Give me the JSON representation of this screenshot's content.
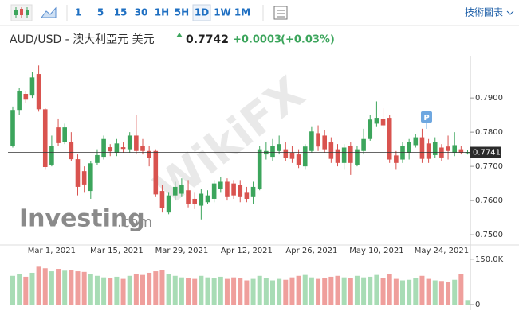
{
  "toolbar": {
    "intervals": [
      "1",
      "5",
      "15",
      "30",
      "1H",
      "5H",
      "1D",
      "1W",
      "1M"
    ],
    "selected": "1D",
    "menu": "技術圖表"
  },
  "header": {
    "symbol": "AUD/USD - 澳大利亞元 美元",
    "price": "0.7742",
    "change": "+0.0003",
    "change_pct": "(+0.03%)"
  },
  "watermarks": {
    "wikifx": "WikiFX",
    "investing": "Investing",
    "investing_suffix": ".com"
  },
  "marker": "P",
  "chart_data": {
    "type": "candlestick",
    "categories": [
      null,
      null,
      null,
      null,
      null,
      null,
      "Mar 1, 2021",
      null,
      null,
      null,
      null,
      null,
      null,
      null,
      null,
      null,
      "Mar 15, 2021",
      null,
      null,
      null,
      null,
      null,
      null,
      null,
      null,
      null,
      "Mar 29, 2021",
      null,
      null,
      null,
      null,
      null,
      null,
      null,
      null,
      null,
      "Apr 12, 2021",
      null,
      null,
      null,
      null,
      null,
      null,
      null,
      null,
      null,
      "Apr 26, 2021",
      null,
      null,
      null,
      null,
      null,
      null,
      null,
      null,
      null,
      "May 10, 2021",
      null,
      null,
      null,
      null,
      null,
      null,
      null,
      null,
      null,
      "May 24, 2021",
      null,
      null,
      null,
      null
    ],
    "open": [
      0.776,
      0.7865,
      0.7912,
      0.7907,
      0.797,
      0.7867,
      0.7705,
      0.7814,
      0.7772,
      0.7772,
      0.7721,
      0.7686,
      0.7628,
      0.771,
      0.7728,
      0.7756,
      0.774,
      0.7756,
      0.775,
      0.779,
      0.776,
      0.7745,
      0.7745,
      0.7628,
      0.7565,
      0.7615,
      0.762,
      0.763,
      0.7605,
      0.7585,
      0.7595,
      0.7605,
      0.7635,
      0.7655,
      0.765,
      0.7645,
      0.7625,
      0.761,
      0.7635,
      0.7735,
      0.7728,
      0.7745,
      0.775,
      0.774,
      0.7735,
      0.77,
      0.7745,
      0.7797,
      0.779,
      0.777,
      0.775,
      0.771,
      0.776,
      0.7705,
      0.7745,
      0.778,
      0.7825,
      0.7838,
      0.7842,
      0.7732,
      0.772,
      0.774,
      0.7762,
      0.7785,
      0.7767,
      0.7733,
      0.7755,
      0.7758,
      0.774,
      0.775,
      0.7739
    ],
    "high": [
      0.7875,
      0.793,
      0.792,
      0.7975,
      0.7995,
      0.787,
      0.779,
      0.784,
      0.7825,
      0.78,
      0.7735,
      0.77,
      0.7715,
      0.775,
      0.779,
      0.7765,
      0.778,
      0.777,
      0.78,
      0.785,
      0.778,
      0.776,
      0.775,
      0.7645,
      0.7625,
      0.7655,
      0.7665,
      0.766,
      0.7625,
      0.7635,
      0.763,
      0.766,
      0.767,
      0.7665,
      0.766,
      0.766,
      0.764,
      0.7655,
      0.776,
      0.777,
      0.778,
      0.779,
      0.777,
      0.776,
      0.775,
      0.7765,
      0.7815,
      0.782,
      0.7805,
      0.7785,
      0.7765,
      0.7765,
      0.777,
      0.776,
      0.781,
      0.785,
      0.789,
      0.787,
      0.785,
      0.7745,
      0.777,
      0.778,
      0.7795,
      0.781,
      0.778,
      0.7785,
      0.7765,
      0.779,
      0.78,
      0.776,
      0.7748
    ],
    "low": [
      0.7755,
      0.785,
      0.7885,
      0.79,
      0.786,
      0.769,
      0.77,
      0.776,
      0.7765,
      0.7715,
      0.7615,
      0.7625,
      0.7605,
      0.7705,
      0.772,
      0.773,
      0.773,
      0.774,
      0.774,
      0.7735,
      0.7735,
      0.77,
      0.761,
      0.7565,
      0.756,
      0.76,
      0.761,
      0.758,
      0.7575,
      0.7545,
      0.759,
      0.7595,
      0.7625,
      0.76,
      0.7605,
      0.7595,
      0.7595,
      0.759,
      0.763,
      0.772,
      0.7715,
      0.7735,
      0.7715,
      0.771,
      0.7695,
      0.769,
      0.774,
      0.7745,
      0.774,
      0.771,
      0.77,
      0.769,
      0.7675,
      0.77,
      0.7735,
      0.7775,
      0.7815,
      0.781,
      0.771,
      0.769,
      0.771,
      0.772,
      0.7755,
      0.771,
      0.771,
      0.7725,
      0.7715,
      0.772,
      0.773,
      0.7735,
      0.7735
    ],
    "close": [
      0.7865,
      0.7919,
      0.7895,
      0.796,
      0.7867,
      0.7698,
      0.776,
      0.7768,
      0.7814,
      0.7721,
      0.764,
      0.7647,
      0.7709,
      0.7733,
      0.778,
      0.7744,
      0.7767,
      0.7751,
      0.779,
      0.7745,
      0.7745,
      0.7725,
      0.7618,
      0.7577,
      0.7615,
      0.764,
      0.7645,
      0.759,
      0.759,
      0.762,
      0.7615,
      0.765,
      0.7655,
      0.761,
      0.7615,
      0.761,
      0.7605,
      0.764,
      0.775,
      0.7745,
      0.776,
      0.7765,
      0.7725,
      0.7722,
      0.7705,
      0.7758,
      0.7802,
      0.7758,
      0.775,
      0.7722,
      0.771,
      0.7755,
      0.771,
      0.775,
      0.778,
      0.7837,
      0.7842,
      0.782,
      0.772,
      0.771,
      0.776,
      0.7772,
      0.7785,
      0.7722,
      0.7722,
      0.7772,
      0.7726,
      0.7745,
      0.7762,
      0.774,
      0.7742
    ],
    "volume": [
      95000,
      100000,
      92000,
      105000,
      125000,
      120000,
      110000,
      118000,
      112000,
      115000,
      110000,
      108000,
      100000,
      95000,
      90000,
      88000,
      92000,
      85000,
      95000,
      100000,
      98000,
      105000,
      110000,
      115000,
      100000,
      95000,
      90000,
      88000,
      85000,
      95000,
      90000,
      88000,
      92000,
      85000,
      90000,
      88000,
      80000,
      85000,
      95000,
      88000,
      80000,
      85000,
      82000,
      90000,
      95000,
      98000,
      90000,
      85000,
      88000,
      92000,
      95000,
      90000,
      88000,
      95000,
      90000,
      92000,
      98000,
      88000,
      100000,
      85000,
      80000,
      82000,
      88000,
      95000,
      85000,
      80000,
      78000,
      75000,
      82000,
      100000,
      15000
    ],
    "up_color": "#3ca55c",
    "down_color": "#d9534f",
    "up_volume_color": "#a8dcb5",
    "down_volume_color": "#ef9f9c",
    "ylim": [
      0.7477,
      0.8012
    ],
    "yticks": [
      {
        "value": 0.75,
        "label": "0.7500"
      },
      {
        "value": 0.76,
        "label": "0.7600"
      },
      {
        "value": 0.77,
        "label": "0.7700"
      },
      {
        "value": 0.78,
        "label": "0.7800"
      },
      {
        "value": 0.79,
        "label": "0.7900"
      }
    ],
    "current_price": 0.7741,
    "y2lim": [
      0,
      160000
    ],
    "y2ticks": [
      0,
      {
        "value": 150000,
        "label": "150.0K"
      }
    ]
  }
}
